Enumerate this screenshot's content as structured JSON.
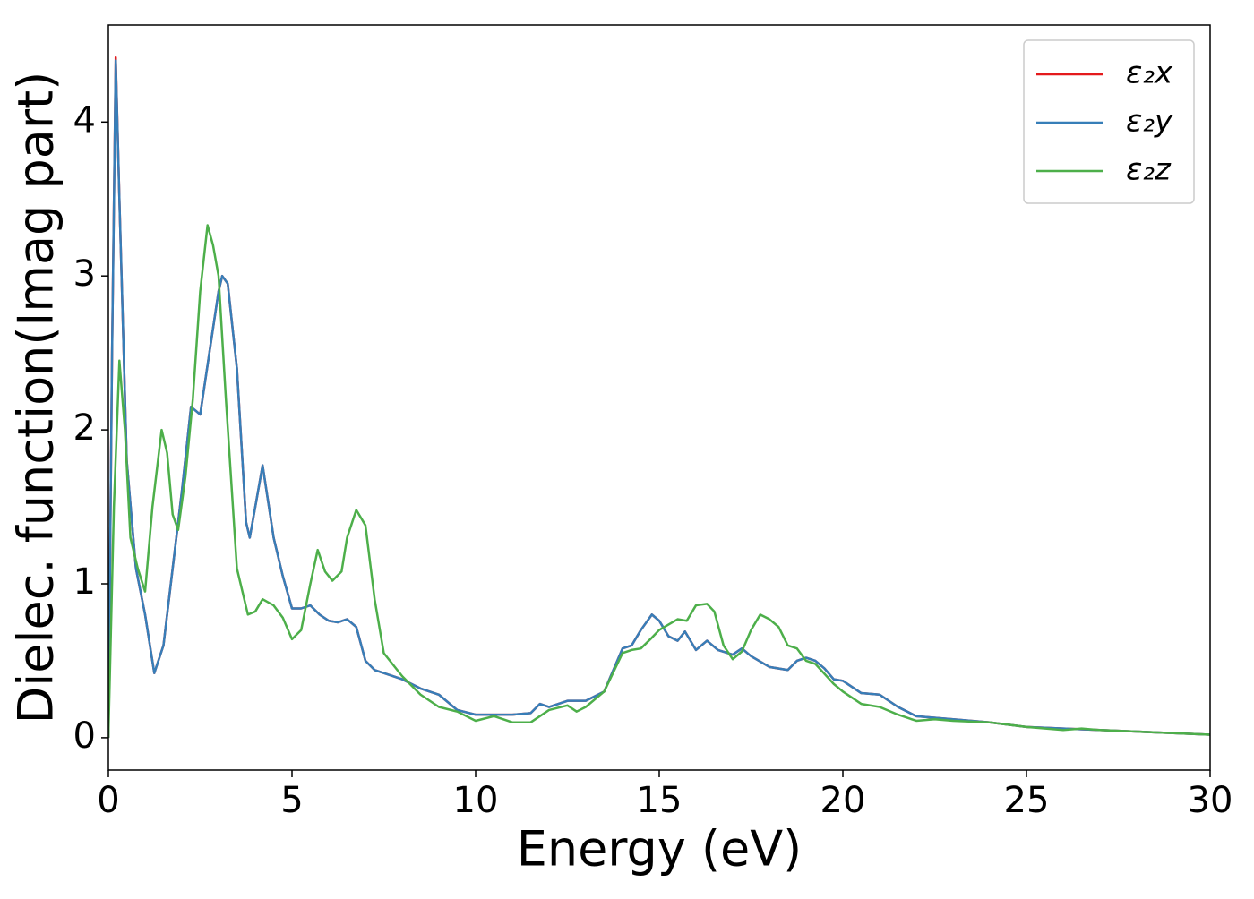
{
  "chart_data": {
    "type": "line",
    "x_label": "Energy (eV)",
    "y_label": "Dielec. function(Imag part)",
    "xlim": [
      0,
      30
    ],
    "ylim": [
      -0.21,
      4.63
    ],
    "xticks": [
      0,
      5,
      10,
      15,
      20,
      25,
      30
    ],
    "yticks": [
      0,
      1,
      2,
      3,
      4
    ],
    "grid": false,
    "legend": "upper right",
    "series": [
      {
        "name": "ε₂x",
        "color": "#e41a1c",
        "x": [
          0,
          0.1,
          0.2,
          0.3,
          0.5,
          0.75,
          1.0,
          1.25,
          1.5,
          1.75,
          2.0,
          2.25,
          2.5,
          2.75,
          3.0,
          3.1,
          3.25,
          3.5,
          3.75,
          3.85,
          4.0,
          4.2,
          4.5,
          4.75,
          5.0,
          5.25,
          5.5,
          5.75,
          6.0,
          6.25,
          6.5,
          6.75,
          7.0,
          7.25,
          7.5,
          8,
          8.5,
          9,
          9.5,
          10,
          10.5,
          11,
          11.5,
          11.75,
          12,
          12.5,
          13,
          13.5,
          14,
          14.25,
          14.5,
          14.8,
          15,
          15.25,
          15.5,
          15.7,
          16,
          16.3,
          16.6,
          17,
          17.25,
          17.5,
          18,
          18.5,
          18.75,
          19,
          19.25,
          19.5,
          19.75,
          20,
          20.5,
          21,
          21.5,
          22,
          23,
          24,
          25,
          26,
          27,
          28,
          29,
          30
        ],
        "values": [
          0,
          2.5,
          4.42,
          3.5,
          1.8,
          1.1,
          0.8,
          0.42,
          0.6,
          1.1,
          1.6,
          2.15,
          2.1,
          2.5,
          2.9,
          3.0,
          2.95,
          2.4,
          1.4,
          1.3,
          1.5,
          1.77,
          1.3,
          1.05,
          0.84,
          0.84,
          0.86,
          0.8,
          0.76,
          0.75,
          0.77,
          0.72,
          0.5,
          0.44,
          0.42,
          0.38,
          0.32,
          0.28,
          0.18,
          0.15,
          0.15,
          0.15,
          0.16,
          0.22,
          0.2,
          0.24,
          0.24,
          0.3,
          0.58,
          0.6,
          0.7,
          0.8,
          0.76,
          0.66,
          0.63,
          0.69,
          0.57,
          0.63,
          0.57,
          0.54,
          0.58,
          0.53,
          0.46,
          0.44,
          0.5,
          0.52,
          0.5,
          0.45,
          0.38,
          0.37,
          0.29,
          0.28,
          0.2,
          0.14,
          0.12,
          0.1,
          0.07,
          0.06,
          0.05,
          0.04,
          0.03,
          0.02
        ]
      },
      {
        "name": "ε₂y",
        "color": "#377eb8",
        "x": [
          0,
          0.1,
          0.2,
          0.3,
          0.5,
          0.75,
          1.0,
          1.25,
          1.5,
          1.75,
          2.0,
          2.25,
          2.5,
          2.75,
          3.0,
          3.1,
          3.25,
          3.5,
          3.75,
          3.85,
          4.0,
          4.2,
          4.5,
          4.75,
          5.0,
          5.25,
          5.5,
          5.75,
          6.0,
          6.25,
          6.5,
          6.75,
          7.0,
          7.25,
          7.5,
          8,
          8.5,
          9,
          9.5,
          10,
          10.5,
          11,
          11.5,
          11.75,
          12,
          12.5,
          13,
          13.5,
          14,
          14.25,
          14.5,
          14.8,
          15,
          15.25,
          15.5,
          15.7,
          16,
          16.3,
          16.6,
          17,
          17.25,
          17.5,
          18,
          18.5,
          18.75,
          19,
          19.25,
          19.5,
          19.75,
          20,
          20.5,
          21,
          21.5,
          22,
          23,
          24,
          25,
          26,
          27,
          28,
          29,
          30
        ],
        "values": [
          0,
          2.5,
          4.4,
          3.5,
          1.8,
          1.1,
          0.8,
          0.42,
          0.6,
          1.1,
          1.6,
          2.15,
          2.1,
          2.5,
          2.9,
          3.0,
          2.95,
          2.4,
          1.4,
          1.3,
          1.5,
          1.77,
          1.3,
          1.05,
          0.84,
          0.84,
          0.86,
          0.8,
          0.76,
          0.75,
          0.77,
          0.72,
          0.5,
          0.44,
          0.42,
          0.38,
          0.32,
          0.28,
          0.18,
          0.15,
          0.15,
          0.15,
          0.16,
          0.22,
          0.2,
          0.24,
          0.24,
          0.3,
          0.58,
          0.6,
          0.7,
          0.8,
          0.76,
          0.66,
          0.63,
          0.69,
          0.57,
          0.63,
          0.57,
          0.54,
          0.58,
          0.53,
          0.46,
          0.44,
          0.5,
          0.52,
          0.5,
          0.45,
          0.38,
          0.37,
          0.29,
          0.28,
          0.2,
          0.14,
          0.12,
          0.1,
          0.07,
          0.06,
          0.05,
          0.04,
          0.03,
          0.02
        ]
      },
      {
        "name": "ε₂z",
        "color": "#4daf4a",
        "x": [
          0,
          0.15,
          0.3,
          0.45,
          0.6,
          0.8,
          1.0,
          1.2,
          1.45,
          1.6,
          1.75,
          1.9,
          2.1,
          2.3,
          2.5,
          2.7,
          2.85,
          3.0,
          3.2,
          3.5,
          3.8,
          4.0,
          4.2,
          4.5,
          4.75,
          5.0,
          5.25,
          5.5,
          5.7,
          5.9,
          6.1,
          6.35,
          6.5,
          6.75,
          7.0,
          7.25,
          7.5,
          8,
          8.5,
          9,
          9.5,
          10,
          10.5,
          11,
          11.5,
          12,
          12.5,
          12.75,
          13,
          13.5,
          14,
          14.25,
          14.5,
          14.8,
          15,
          15.5,
          15.75,
          16,
          16.3,
          16.5,
          16.75,
          17,
          17.25,
          17.5,
          17.75,
          18,
          18.25,
          18.5,
          18.75,
          19,
          19.25,
          19.75,
          20,
          20.5,
          21,
          21.5,
          22,
          22.5,
          23,
          24,
          25,
          26,
          26.5,
          27,
          28,
          29,
          30
        ],
        "values": [
          0,
          1.5,
          2.45,
          2.0,
          1.3,
          1.1,
          0.95,
          1.5,
          2.0,
          1.85,
          1.45,
          1.35,
          1.7,
          2.2,
          2.9,
          3.33,
          3.2,
          3.0,
          2.2,
          1.1,
          0.8,
          0.82,
          0.9,
          0.86,
          0.78,
          0.64,
          0.7,
          1.0,
          1.22,
          1.08,
          1.02,
          1.08,
          1.3,
          1.48,
          1.38,
          0.9,
          0.55,
          0.4,
          0.28,
          0.2,
          0.17,
          0.11,
          0.14,
          0.1,
          0.1,
          0.18,
          0.21,
          0.17,
          0.2,
          0.3,
          0.55,
          0.57,
          0.58,
          0.65,
          0.7,
          0.77,
          0.76,
          0.86,
          0.87,
          0.82,
          0.6,
          0.51,
          0.56,
          0.7,
          0.8,
          0.77,
          0.72,
          0.6,
          0.58,
          0.5,
          0.48,
          0.35,
          0.3,
          0.22,
          0.2,
          0.15,
          0.11,
          0.12,
          0.11,
          0.1,
          0.07,
          0.05,
          0.06,
          0.05,
          0.04,
          0.03,
          0.02
        ]
      }
    ]
  }
}
